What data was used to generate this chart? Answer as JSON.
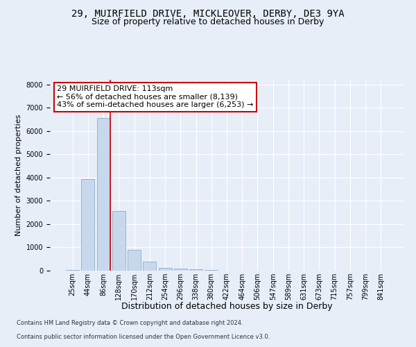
{
  "title_line1": "29, MUIRFIELD DRIVE, MICKLEOVER, DERBY, DE3 9YA",
  "title_line2": "Size of property relative to detached houses in Derby",
  "xlabel": "Distribution of detached houses by size in Derby",
  "ylabel": "Number of detached properties",
  "categories": [
    "25sqm",
    "44sqm",
    "86sqm",
    "128sqm",
    "170sqm",
    "212sqm",
    "254sqm",
    "296sqm",
    "338sqm",
    "380sqm",
    "422sqm",
    "464sqm",
    "506sqm",
    "547sqm",
    "589sqm",
    "631sqm",
    "673sqm",
    "715sqm",
    "757sqm",
    "799sqm",
    "841sqm"
  ],
  "values": [
    30,
    3950,
    6550,
    2550,
    900,
    380,
    130,
    100,
    60,
    20,
    0,
    0,
    0,
    0,
    0,
    0,
    0,
    0,
    0,
    0,
    0
  ],
  "bar_color": "#c8d8ec",
  "bar_edge_color": "#7aa0c0",
  "vline_color": "#cc0000",
  "vline_x": 2.45,
  "annotation_text": "29 MUIRFIELD DRIVE: 113sqm\n← 56% of detached houses are smaller (8,139)\n43% of semi-detached houses are larger (6,253) →",
  "annotation_box_facecolor": "#ffffff",
  "annotation_box_edgecolor": "#cc0000",
  "ylim": [
    0,
    8200
  ],
  "yticks": [
    0,
    1000,
    2000,
    3000,
    4000,
    5000,
    6000,
    7000,
    8000
  ],
  "background_color": "#e8eef8",
  "plot_bg_color": "#e8eef8",
  "footer_line1": "Contains HM Land Registry data © Crown copyright and database right 2024.",
  "footer_line2": "Contains public sector information licensed under the Open Government Licence v3.0.",
  "title_fontsize": 10,
  "subtitle_fontsize": 9,
  "tick_fontsize": 7,
  "ylabel_fontsize": 8,
  "xlabel_fontsize": 9,
  "annotation_fontsize": 8,
  "footer_fontsize": 6
}
